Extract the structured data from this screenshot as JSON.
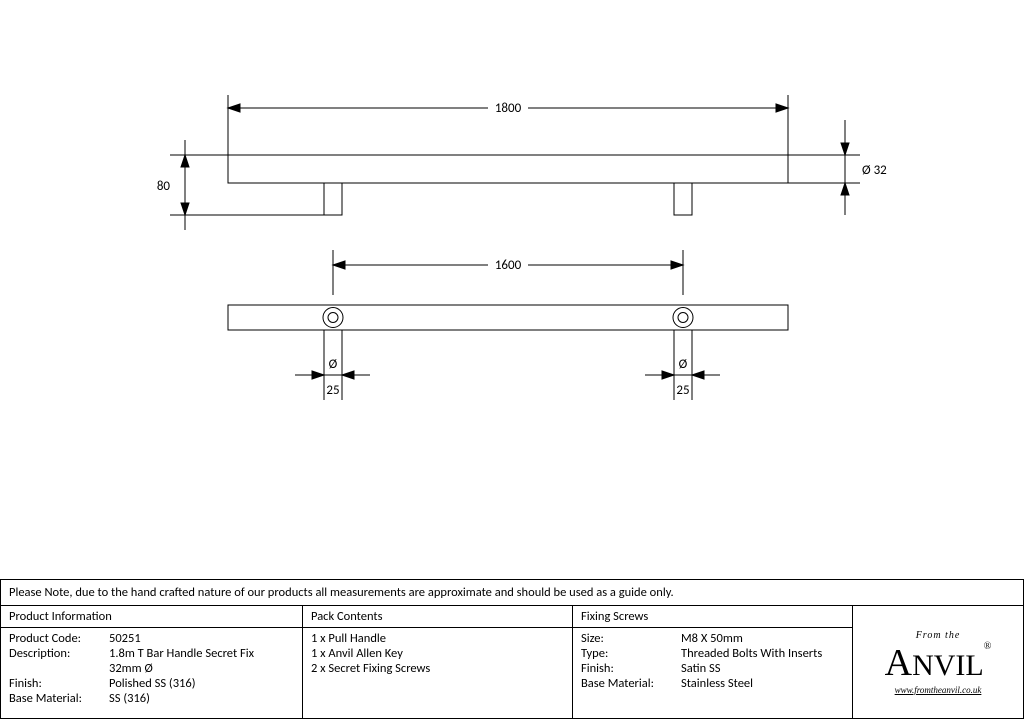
{
  "drawing": {
    "stroke": "#000000",
    "stroke_width": 1,
    "fill": "#ffffff",
    "font_size": 13,
    "dims": {
      "overall_length": "1800",
      "hole_centers": "1600",
      "height": "80",
      "bar_dia": "Ø 32",
      "leg_dia_label": "Ø",
      "leg_dia_val": "25"
    }
  },
  "note": "Please Note, due to the hand crafted nature of our products all measurements are approximate and should be used as a guide only.",
  "product_info": {
    "header": "Product Information",
    "rows": [
      {
        "k": "Product Code:",
        "v": "50251"
      },
      {
        "k": "Description:",
        "v": "1.8m T Bar Handle Secret Fix"
      },
      {
        "k": "",
        "v": "32mm Ø"
      },
      {
        "k": "Finish:",
        "v": "Polished SS (316)"
      },
      {
        "k": "Base Material:",
        "v": "SS (316)"
      }
    ]
  },
  "pack_contents": {
    "header": "Pack Contents",
    "items": [
      "1 x Pull Handle",
      "1 x Anvil Allen Key",
      "2 x Secret Fixing Screws"
    ]
  },
  "fixing_screws": {
    "header": "Fixing Screws",
    "rows": [
      {
        "k": "Size:",
        "v": "M8 X 50mm"
      },
      {
        "k": "Type:",
        "v": "Threaded Bolts With Inserts"
      },
      {
        "k": "Finish:",
        "v": "Satin SS"
      },
      {
        "k": "Base Material:",
        "v": "Stainless Steel"
      }
    ]
  },
  "logo": {
    "top": "From the",
    "main": "ANVIL",
    "url": "www.fromtheanvil.co.uk",
    "reg": "®"
  }
}
